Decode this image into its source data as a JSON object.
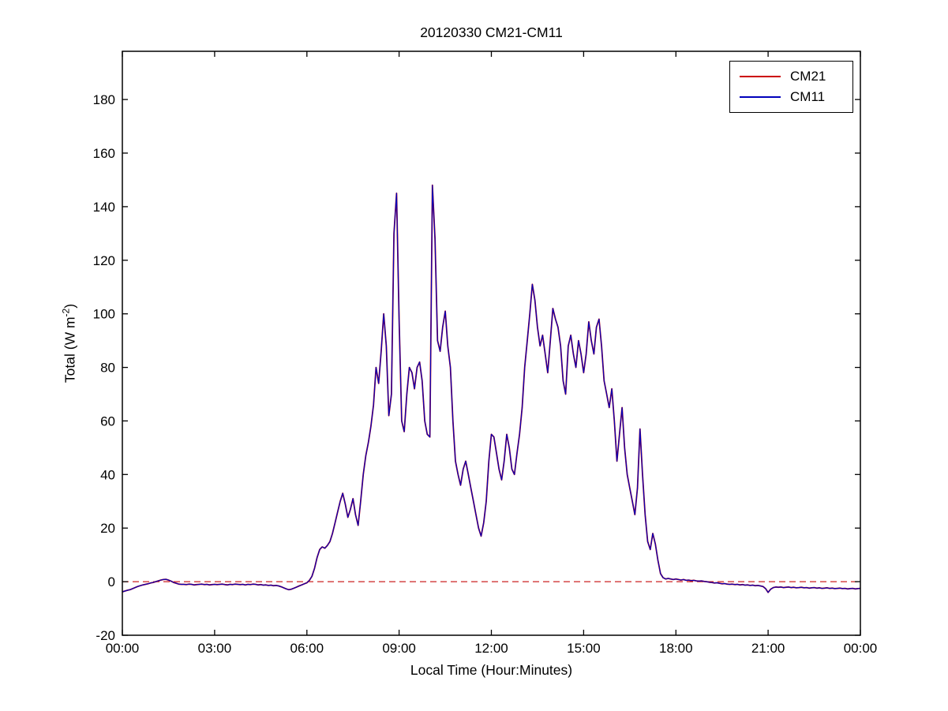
{
  "figure": {
    "background": "#ffffff"
  },
  "chart_data": {
    "type": "line",
    "title": "20120330 CM21-CM11",
    "xlabel": "Local Time (Hour:Minutes)",
    "ylabel": "Total (W m^-2)",
    "ylabel_parts": {
      "prefix": "Total (W m",
      "sup": "-2",
      "suffix": ")"
    },
    "xlim_hours": [
      0,
      24
    ],
    "ylim": [
      -20,
      198
    ],
    "x_tick_hours": [
      0,
      3,
      6,
      9,
      12,
      15,
      18,
      21,
      24
    ],
    "x_ticks": [
      "00:00",
      "03:00",
      "06:00",
      "09:00",
      "12:00",
      "15:00",
      "18:00",
      "21:00",
      "00:00"
    ],
    "y_ticks": [
      -20,
      0,
      20,
      40,
      60,
      80,
      100,
      120,
      140,
      160,
      180
    ],
    "grid": false,
    "x_step_minutes": 5,
    "zero_line": {
      "y": 0,
      "color": "#cc2222",
      "style": "dashed"
    },
    "legend": {
      "position": "top-right",
      "entries": [
        {
          "label": "CM21",
          "color": "#cc0000"
        },
        {
          "label": "CM11",
          "color": "#0000bb"
        }
      ]
    },
    "series": [
      {
        "name": "CM21",
        "color": "#cc0000",
        "values_same_as": "CM11"
      },
      {
        "name": "CM11",
        "color": "#0000bb",
        "values": [
          -3.8,
          -3.5,
          -3.2,
          -3.0,
          -2.6,
          -2.2,
          -1.8,
          -1.5,
          -1.2,
          -1.0,
          -0.8,
          -0.5,
          -0.3,
          0.0,
          0.3,
          0.6,
          0.8,
          0.9,
          0.6,
          0.2,
          -0.3,
          -0.6,
          -0.9,
          -1.0,
          -1.0,
          -1.1,
          -0.9,
          -1.0,
          -1.2,
          -1.1,
          -1.0,
          -0.9,
          -1.1,
          -1.0,
          -1.2,
          -1.1,
          -1.0,
          -1.1,
          -1.0,
          -0.9,
          -1.1,
          -1.2,
          -1.0,
          -1.1,
          -0.9,
          -1.0,
          -1.1,
          -1.0,
          -1.2,
          -1.0,
          -1.1,
          -0.9,
          -1.0,
          -1.2,
          -1.1,
          -1.3,
          -1.2,
          -1.4,
          -1.3,
          -1.5,
          -1.4,
          -1.6,
          -1.9,
          -2.3,
          -2.7,
          -3.0,
          -2.8,
          -2.4,
          -2.0,
          -1.6,
          -1.2,
          -0.8,
          -0.4,
          0.5,
          2.0,
          5.0,
          9.0,
          12.0,
          13.0,
          12.5,
          13.5,
          15.0,
          18.0,
          22.0,
          26.0,
          30.0,
          33.0,
          29.0,
          24.0,
          27.0,
          31.0,
          25.0,
          21.0,
          30.0,
          40.0,
          47.0,
          52.0,
          58.0,
          66.0,
          80.0,
          74.0,
          86.0,
          100.0,
          88.0,
          62.0,
          70.0,
          130.0,
          145.0,
          98.0,
          60.0,
          56.0,
          70.0,
          80.0,
          78.0,
          72.0,
          80.0,
          82.0,
          75.0,
          60.0,
          55.0,
          54.0,
          148.0,
          128.0,
          90.0,
          86.0,
          95.0,
          101.0,
          88.0,
          80.0,
          60.0,
          45.0,
          40.0,
          36.0,
          42.0,
          45.0,
          40.0,
          35.0,
          30.0,
          25.0,
          20.0,
          17.0,
          22.0,
          30.0,
          45.0,
          55.0,
          54.0,
          48.0,
          42.0,
          38.0,
          45.0,
          55.0,
          50.0,
          42.0,
          40.0,
          48.0,
          55.0,
          65.0,
          80.0,
          90.0,
          100.0,
          111.0,
          105.0,
          95.0,
          88.0,
          92.0,
          85.0,
          78.0,
          90.0,
          102.0,
          98.0,
          95.0,
          88.0,
          75.0,
          70.0,
          88.0,
          92.0,
          85.0,
          80.0,
          90.0,
          85.0,
          78.0,
          85.0,
          97.0,
          90.0,
          85.0,
          95.0,
          98.0,
          88.0,
          75.0,
          70.0,
          65.0,
          72.0,
          60.0,
          45.0,
          55.0,
          65.0,
          50.0,
          40.0,
          35.0,
          30.0,
          25.0,
          35.0,
          57.0,
          40.0,
          25.0,
          15.0,
          12.0,
          18.0,
          14.0,
          8.0,
          3.0,
          1.5,
          1.0,
          1.2,
          1.0,
          0.8,
          1.0,
          0.8,
          0.6,
          0.8,
          0.5,
          0.6,
          0.4,
          0.5,
          0.3,
          0.2,
          0.3,
          0.1,
          0.0,
          -0.2,
          -0.3,
          -0.5,
          -0.4,
          -0.6,
          -0.8,
          -0.7,
          -0.9,
          -1.0,
          -0.9,
          -1.1,
          -1.0,
          -1.2,
          -1.1,
          -1.3,
          -1.2,
          -1.4,
          -1.3,
          -1.5,
          -1.4,
          -1.6,
          -1.8,
          -2.6,
          -4.0,
          -2.8,
          -2.2,
          -2.0,
          -2.1,
          -2.0,
          -2.2,
          -2.1,
          -2.0,
          -2.2,
          -2.1,
          -2.3,
          -2.2,
          -2.1,
          -2.3,
          -2.2,
          -2.4,
          -2.3,
          -2.2,
          -2.4,
          -2.3,
          -2.5,
          -2.4,
          -2.3,
          -2.5,
          -2.4,
          -2.6,
          -2.5,
          -2.4,
          -2.6,
          -2.5,
          -2.7,
          -2.6,
          -2.5,
          -2.7,
          -2.6,
          -2.5
        ]
      }
    ]
  }
}
